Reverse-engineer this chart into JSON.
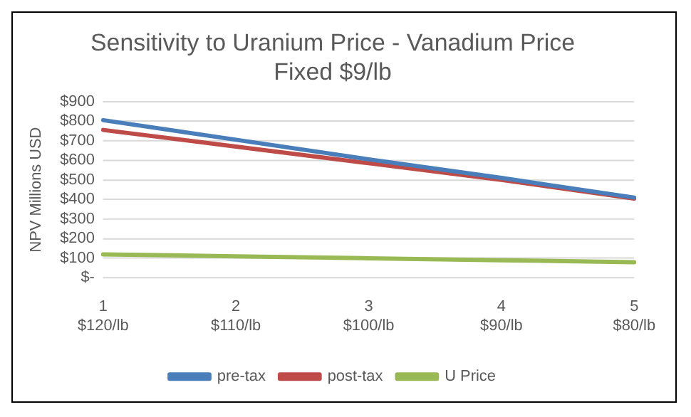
{
  "chart_data": {
    "type": "line",
    "title": "Sensitivity to Uranium Price - Vanadium Price Fixed $9/lb",
    "ylabel": "NPV Millions USD",
    "categories": [
      "1\n$120/lb",
      "2\n$110/lb",
      "3\n$100/lb",
      "4\n$90/lb",
      "5\n$80/lb"
    ],
    "series": [
      {
        "name": "pre-tax",
        "color": "#4a7ebb",
        "values": [
          805,
          705,
          605,
          510,
          410
        ]
      },
      {
        "name": "post-tax",
        "color": "#be4b48",
        "values": [
          755,
          670,
          585,
          500,
          405
        ]
      },
      {
        "name": "U Price",
        "color": "#98b954",
        "values": [
          120,
          110,
          100,
          90,
          80
        ]
      }
    ],
    "ylim": [
      0,
      900
    ],
    "yticks": [
      {
        "value": 0,
        "label": "$-"
      },
      {
        "value": 100,
        "label": "$100"
      },
      {
        "value": 200,
        "label": "$200"
      },
      {
        "value": 300,
        "label": "$300"
      },
      {
        "value": 400,
        "label": "$400"
      },
      {
        "value": 500,
        "label": "$500"
      },
      {
        "value": 600,
        "label": "$600"
      },
      {
        "value": 700,
        "label": "$700"
      },
      {
        "value": 800,
        "label": "$800"
      },
      {
        "value": 900,
        "label": "$900"
      }
    ],
    "grid": "y",
    "legend": "bottom",
    "marker": "none",
    "line_style": "solid"
  }
}
